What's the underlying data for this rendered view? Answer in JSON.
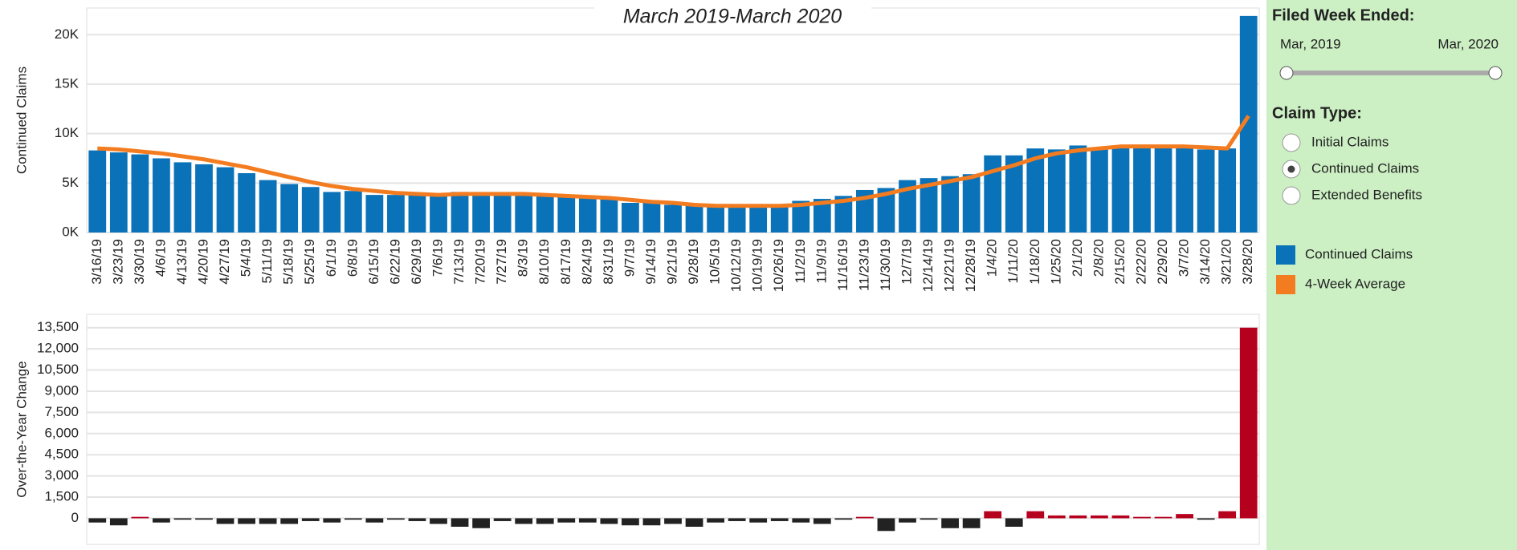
{
  "chart_data": [
    {
      "type": "bar",
      "title": "March 2019-March 2020",
      "y_label": "Continued Claims",
      "categories": [
        "3/16/19",
        "3/23/19",
        "3/30/19",
        "4/6/19",
        "4/13/19",
        "4/20/19",
        "4/27/19",
        "5/4/19",
        "5/11/19",
        "5/18/19",
        "5/25/19",
        "6/1/19",
        "6/8/19",
        "6/15/19",
        "6/22/19",
        "6/29/19",
        "7/6/19",
        "7/13/19",
        "7/20/19",
        "7/27/19",
        "8/3/19",
        "8/10/19",
        "8/17/19",
        "8/24/19",
        "8/31/19",
        "9/7/19",
        "9/14/19",
        "9/21/19",
        "9/28/19",
        "10/5/19",
        "10/12/19",
        "10/19/19",
        "10/26/19",
        "11/2/19",
        "11/9/19",
        "11/16/19",
        "11/23/19",
        "11/30/19",
        "12/7/19",
        "12/14/19",
        "12/21/19",
        "12/28/19",
        "1/4/20",
        "1/11/20",
        "1/18/20",
        "1/25/20",
        "2/1/20",
        "2/8/20",
        "2/15/20",
        "2/22/20",
        "2/29/20",
        "3/7/20",
        "3/14/20",
        "3/21/20",
        "3/28/20"
      ],
      "series": [
        {
          "name": "Continued Claims",
          "color": "#0a72b8",
          "type": "bar",
          "values": [
            8300,
            8100,
            7900,
            7500,
            7100,
            6900,
            6600,
            6000,
            5300,
            4900,
            4600,
            4100,
            4200,
            3800,
            3800,
            3800,
            3700,
            4100,
            3800,
            3900,
            3800,
            3700,
            3700,
            3600,
            3400,
            3000,
            3000,
            2800,
            2700,
            2600,
            2600,
            2700,
            2800,
            3200,
            3400,
            3700,
            4300,
            4500,
            5300,
            5500,
            5700,
            5900,
            7800,
            7800,
            8500,
            8400,
            8800,
            8500,
            8800,
            8600,
            8600,
            8600,
            8400,
            8500,
            21900
          ]
        },
        {
          "name": "4-Week Average",
          "color": "#f47c20",
          "type": "line",
          "values": [
            8500,
            8400,
            8200,
            8000,
            7700,
            7400,
            7000,
            6600,
            6100,
            5600,
            5100,
            4700,
            4400,
            4200,
            4000,
            3900,
            3800,
            3900,
            3900,
            3900,
            3900,
            3800,
            3700,
            3600,
            3500,
            3300,
            3100,
            3000,
            2800,
            2700,
            2700,
            2700,
            2700,
            2800,
            3000,
            3200,
            3500,
            3900,
            4400,
            4800,
            5200,
            5600,
            6200,
            6800,
            7500,
            8000,
            8300,
            8500,
            8700,
            8700,
            8700,
            8700,
            8600,
            8500,
            11800
          ]
        }
      ],
      "ylim": [
        0,
        22700
      ],
      "yticks": [
        {
          "value": 0,
          "label": "0K"
        },
        {
          "value": 5000,
          "label": "5K"
        },
        {
          "value": 10000,
          "label": "10K"
        },
        {
          "value": 15000,
          "label": "15K"
        },
        {
          "value": 20000,
          "label": "20K"
        }
      ],
      "grid": true
    },
    {
      "type": "bar",
      "y_label": "Over-the-Year Change",
      "values": [
        -300,
        -500,
        100,
        -300,
        -100,
        -100,
        -400,
        -400,
        -400,
        -400,
        -200,
        -300,
        -100,
        -300,
        -100,
        -200,
        -400,
        -600,
        -700,
        -200,
        -400,
        -400,
        -300,
        -300,
        -400,
        -500,
        -500,
        -400,
        -600,
        -300,
        -200,
        -300,
        -200,
        -300,
        -400,
        -100,
        100,
        -900,
        -300,
        -100,
        -700,
        -700,
        500,
        -600,
        500,
        200,
        200,
        200,
        200,
        100,
        100,
        300,
        -100,
        500,
        13500
      ],
      "positive_color": "#b5001e",
      "negative_color": "#222222",
      "ylim": [
        -1850,
        14450
      ],
      "yticks": [
        0,
        {
          "value": 1500,
          "label": "1,500"
        },
        {
          "value": 3000,
          "label": "3,000"
        },
        {
          "value": 4500,
          "label": "4,500"
        },
        {
          "value": 6000,
          "label": "6,000"
        },
        {
          "value": 7500,
          "label": "7,500"
        },
        {
          "value": 9000,
          "label": "9,000"
        },
        {
          "value": 10500,
          "label": "10,500"
        },
        {
          "value": 12000,
          "label": "12,000"
        },
        {
          "value": 13500,
          "label": "13,500"
        }
      ],
      "grid": true
    }
  ],
  "controls": {
    "date_filter": {
      "label": "Filed Week Ended:",
      "start": "Mar, 2019",
      "end": "Mar, 2020"
    },
    "claim_type": {
      "label": "Claim Type:",
      "options": [
        "Initial Claims",
        "Continued Claims",
        "Extended Benefits"
      ],
      "selected": 1
    }
  }
}
